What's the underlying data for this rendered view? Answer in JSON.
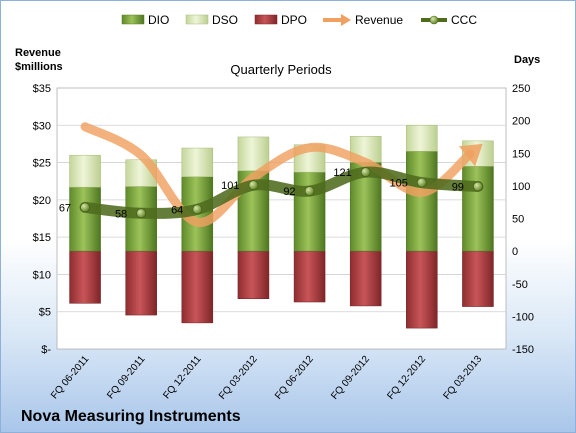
{
  "chart_data": {
    "type": "bar",
    "title": "Quarterly Periods",
    "company": "Nova Measuring Instruments",
    "left_axis_label": [
      "Revenue",
      "$millions"
    ],
    "right_axis_label": "Days",
    "categories": [
      "FQ 06-2011",
      "FQ 09-2011",
      "FQ 12-2011",
      "FQ 03-2012",
      "FQ 06-2012",
      "FQ 09-2012",
      "FQ 12-2012",
      "FQ 03-2013"
    ],
    "left_ticks": [
      "$-",
      "$5",
      "$10",
      "$15",
      "$20",
      "$25",
      "$30",
      "$35"
    ],
    "left_ylim": [
      0,
      35
    ],
    "right_ticks": [
      "-150",
      "-100",
      "-50",
      "0",
      "50",
      "100",
      "150",
      "200",
      "250"
    ],
    "right_ylim": [
      -150,
      250
    ],
    "series": [
      {
        "name": "DIO",
        "kind": "bar",
        "color": "#8cb050",
        "values": [
          98,
          99,
          114,
          123,
          121,
          136,
          153,
          130
        ]
      },
      {
        "name": "DSO",
        "kind": "bar",
        "color": "#dbe8b6",
        "values": [
          49,
          41,
          44,
          52,
          42,
          40,
          40,
          39
        ]
      },
      {
        "name": "DPO",
        "kind": "bar",
        "color": "#b54447",
        "values": [
          -80,
          -98,
          -110,
          -73,
          -78,
          -84,
          -118,
          -85
        ]
      },
      {
        "name": "Revenue",
        "kind": "line",
        "color": "#f0a060",
        "values": [
          29.8,
          26.0,
          17.0,
          23.0,
          27.0,
          25.0,
          21.0,
          27.0
        ]
      },
      {
        "name": "CCC",
        "kind": "line",
        "color": "#4e6b1e",
        "values": [
          67,
          58,
          64,
          101,
          92,
          121,
          105,
          99
        ]
      }
    ],
    "ccc_labels": [
      "67",
      "58",
      "64",
      "101",
      "92",
      "121",
      "105",
      "99"
    ],
    "legend_position": "top"
  }
}
